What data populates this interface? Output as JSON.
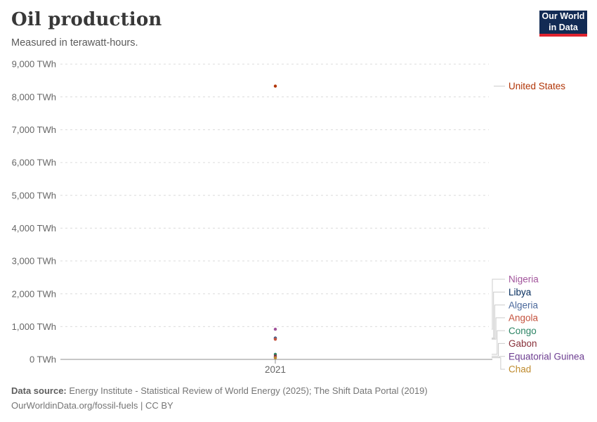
{
  "header": {
    "title": "Oil production",
    "subtitle": "Measured in terawatt-hours.",
    "logo": {
      "line1": "Our World",
      "line2": "in Data"
    }
  },
  "chart_data": {
    "type": "scatter",
    "title": "Oil production",
    "ylabel": "TWh",
    "unit": "TWh",
    "x_ticks": [
      "2021"
    ],
    "ylim": [
      0,
      9000
    ],
    "y_tick_step": 1000,
    "y_tick_suffix": " TWh",
    "grid": "horizontal-dashed",
    "legend_position": "right-entity-labels",
    "x": 2021,
    "series": [
      {
        "name": "United States",
        "value": 8330,
        "color": "#B13507"
      },
      {
        "name": "Nigeria",
        "value": 920,
        "color": "#A2559C"
      },
      {
        "name": "Libya",
        "value": 650,
        "color": "#00295B"
      },
      {
        "name": "Algeria",
        "value": 640,
        "color": "#4C6A9C"
      },
      {
        "name": "Angola",
        "value": 615,
        "color": "#C4523E"
      },
      {
        "name": "Congo",
        "value": 155,
        "color": "#2C8465"
      },
      {
        "name": "Gabon",
        "value": 100,
        "color": "#883039"
      },
      {
        "name": "Equatorial Guinea",
        "value": 60,
        "color": "#6D3E91"
      },
      {
        "name": "Chad",
        "value": 50,
        "color": "#BF8B2E"
      }
    ]
  },
  "footer": {
    "datasource_label": "Data source:",
    "datasource_text": "Energy Institute - Statistical Review of World Energy (2025); The Shift Data Portal (2019)",
    "license_line": "OurWorldinData.org/fossil-fuels | CC BY"
  },
  "colors": {
    "logo_bg": "#122B54",
    "logo_stripe": "#E0232E",
    "grid": "#DBDBDB",
    "axis": "#8F8F8F",
    "tick_text": "#666666",
    "connector": "#CCCCCC"
  }
}
